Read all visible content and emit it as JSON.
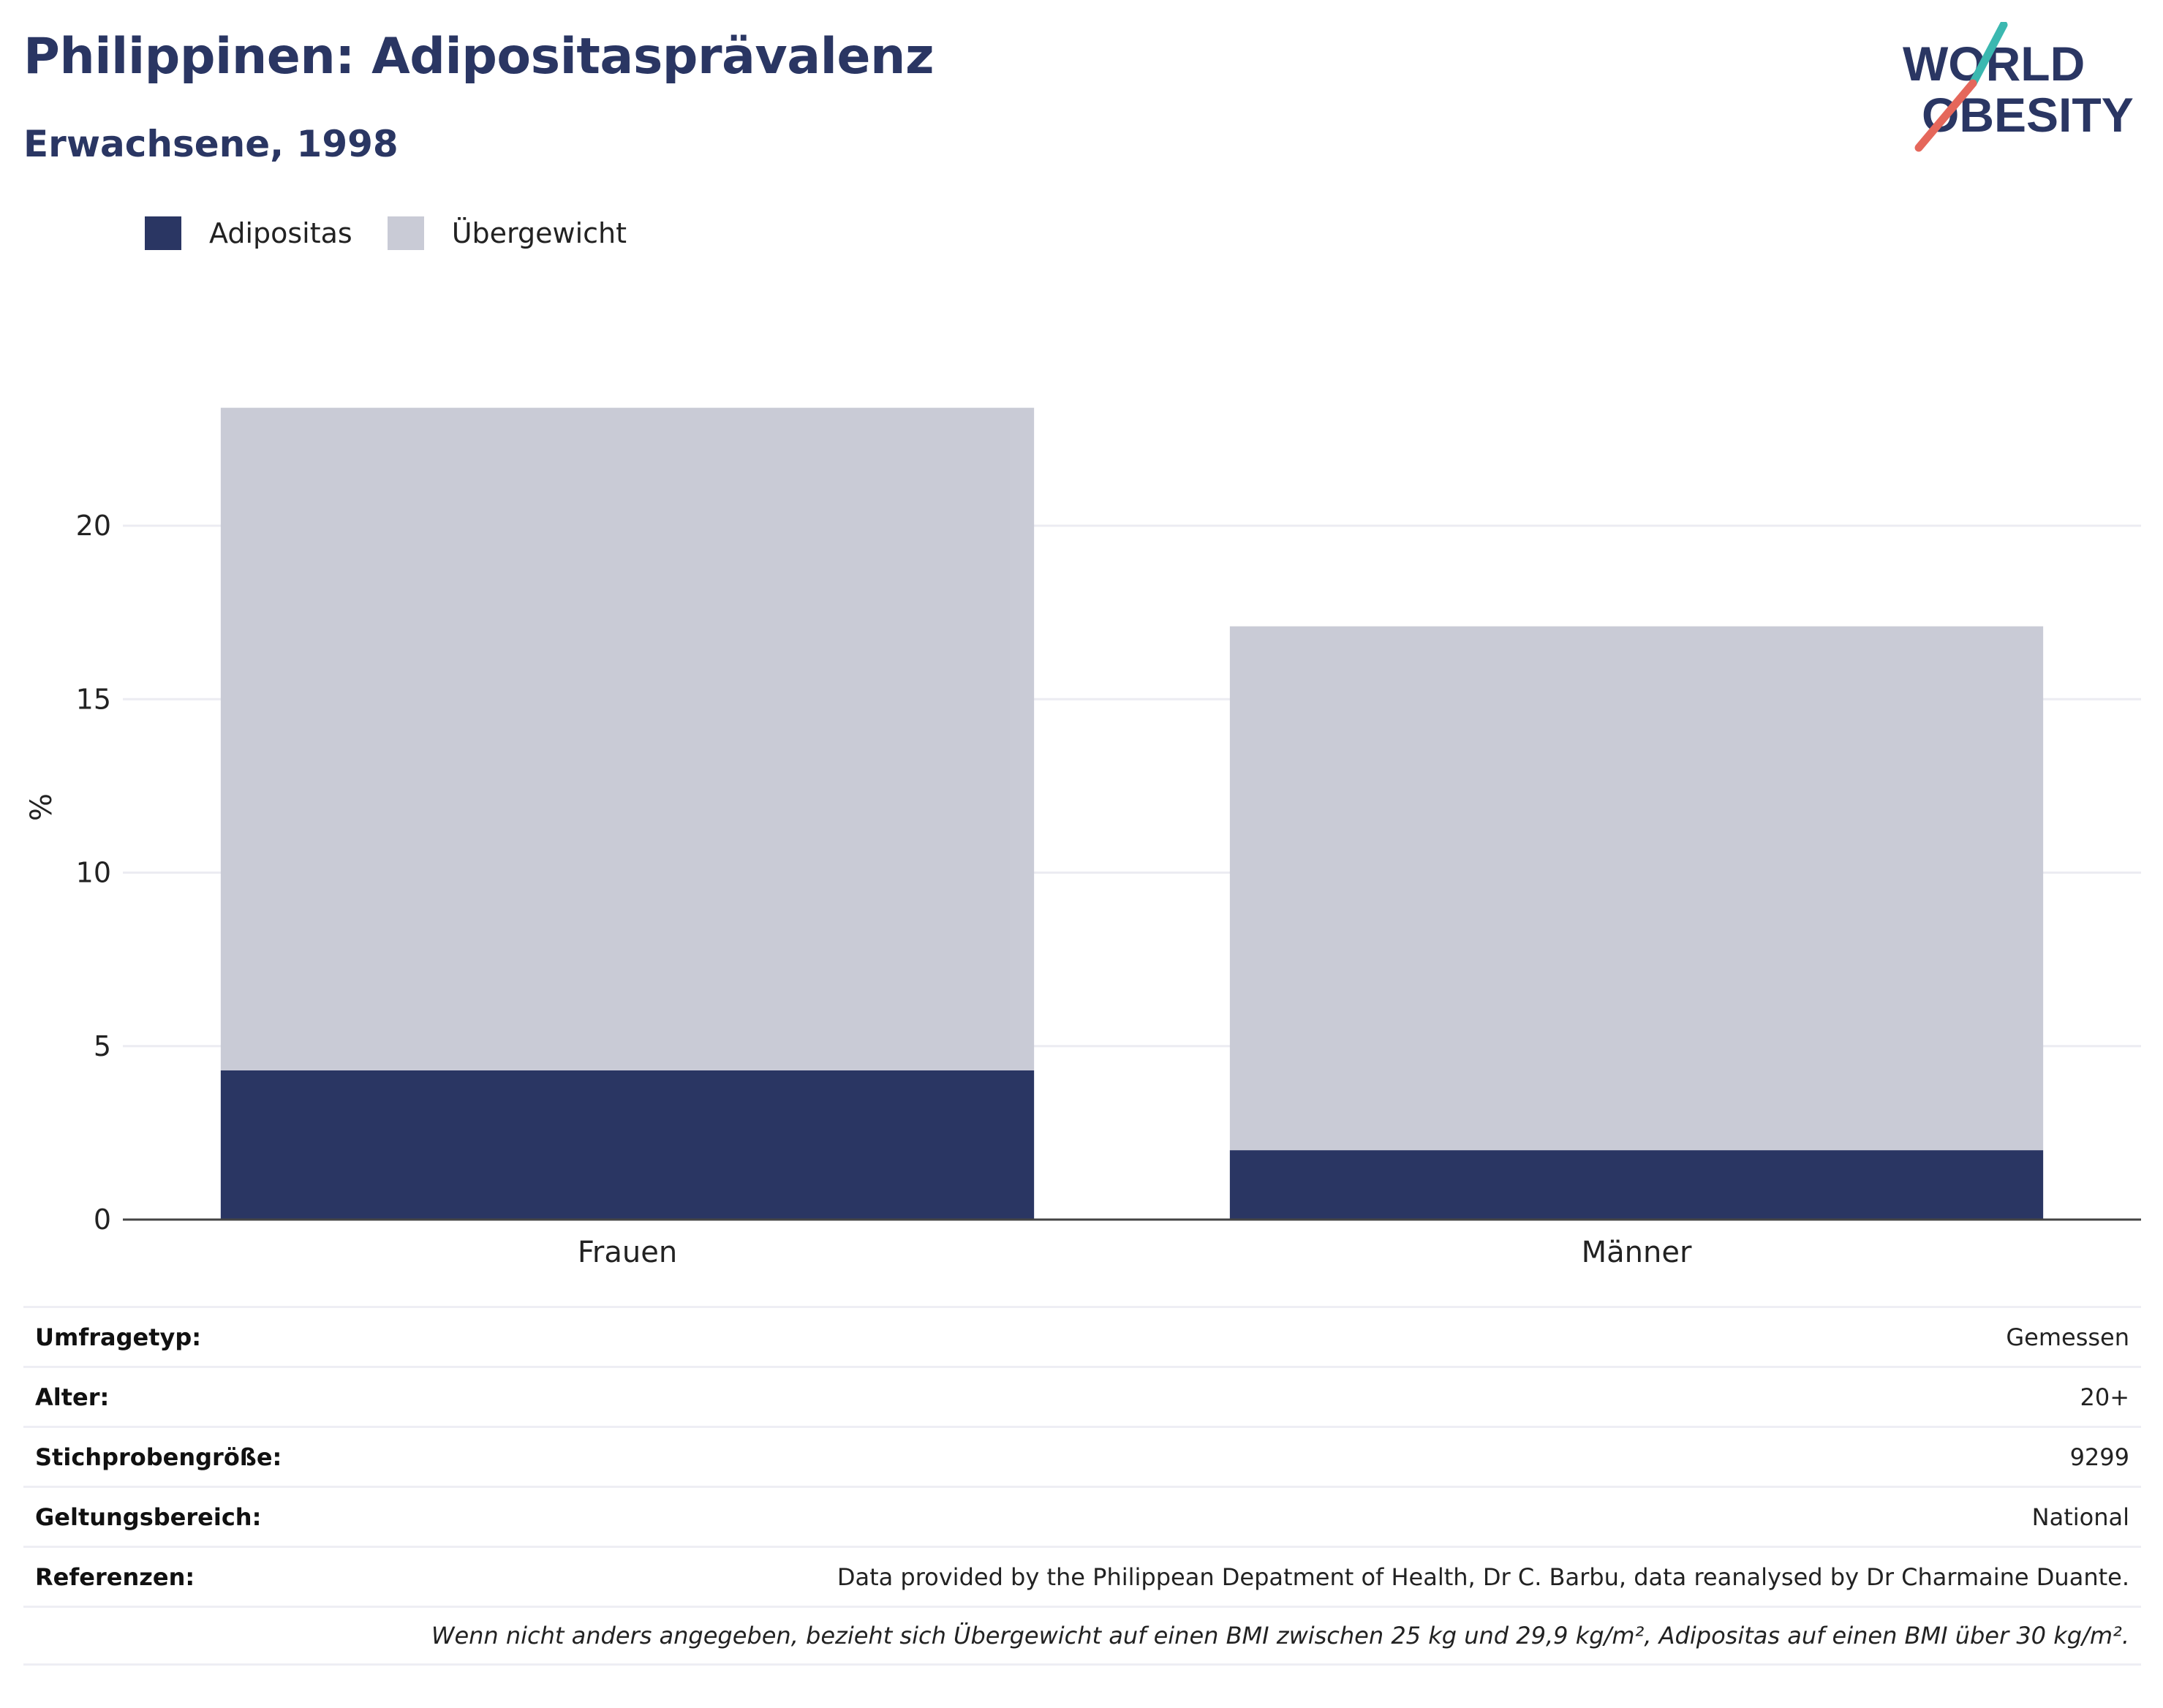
{
  "header": {
    "title": "Philippinen: Adipositasprävalenz",
    "subtitle": "Erwachsene, 1998"
  },
  "logo": {
    "line1": "WORLD",
    "line2": "OBESITY",
    "accent_teal": "#3bb8b0",
    "accent_red": "#e5675b"
  },
  "colors": {
    "adipositas": "#2a3663",
    "uebergewicht": "#c9cbd6",
    "text_dark": "#2a3663"
  },
  "chart_data": {
    "type": "bar",
    "stacked": true,
    "categories": [
      "Frauen",
      "Männer"
    ],
    "series": [
      {
        "name": "Adipositas",
        "values": [
          4.3,
          2.0
        ]
      },
      {
        "name": "Übergewicht",
        "values": [
          19.1,
          15.1
        ]
      }
    ],
    "ylabel": "%",
    "ylim": [
      0,
      24
    ],
    "yticks": [
      0,
      5,
      10,
      15,
      20
    ],
    "grid": true,
    "legend": "top-left"
  },
  "info": {
    "rows": [
      {
        "label": "Umfragetyp:",
        "value": "Gemessen"
      },
      {
        "label": "Alter:",
        "value": "20+"
      },
      {
        "label": "Stichprobengröße:",
        "value": "9299"
      },
      {
        "label": "Geltungsbereich:",
        "value": "National"
      },
      {
        "label": "Referenzen:",
        "value": "Data provided by the Philippean Depatment of Health, Dr C. Barbu, data reanalysed by Dr Charmaine Duante."
      }
    ],
    "note": "Wenn nicht anders angegeben, bezieht sich Übergewicht auf einen BMI zwischen 25 kg und 29,9 kg/m², Adipositas auf einen BMI über 30 kg/m²."
  }
}
